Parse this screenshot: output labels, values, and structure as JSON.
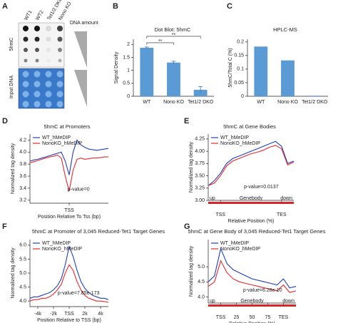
{
  "panel_a": {
    "label": "A",
    "columns": [
      "WT1",
      "WT2",
      "Tet1/2 DKO",
      "Nono KO"
    ],
    "rows": [
      "5hmC",
      "Input DNA"
    ],
    "gradient_label": "DNA amount"
  },
  "chart_data": [
    {
      "type": "bar",
      "panel": "B",
      "title": "Dot Blot: 5hmC",
      "y_label": "Signal Density",
      "categories": [
        "WT",
        "Nono KO",
        "Tet1/2 DKO"
      ],
      "values": [
        1.87,
        1.3,
        0.25
      ],
      "errors": [
        0.03,
        0.05,
        0.12
      ],
      "color": "#5b9bd5",
      "ylim": [
        0,
        2.2
      ],
      "yticks": [
        0,
        0.5,
        1,
        1.5,
        2
      ],
      "annotations": [
        "**",
        "**"
      ]
    },
    {
      "type": "bar",
      "panel": "C",
      "title": "HPLC-MS",
      "y_label": "5hmC/Total C (%)",
      "categories": [
        "WT",
        "Nono KO",
        "Tet1/2 DKO"
      ],
      "values": [
        0.183,
        0.132,
        0.002
      ],
      "color": "#5b9bd5",
      "ylim": [
        0,
        0.21
      ],
      "yticks": [
        0,
        0.05,
        0.1,
        0.15,
        0.2
      ]
    },
    {
      "type": "line",
      "panel": "D",
      "title": "5hmC at Promoters",
      "y_label": "Normalized tag density",
      "x_label": "Position Relative To Tss (bp)",
      "annotation": "p-value=0",
      "x": [
        -5000,
        -4500,
        -4000,
        -3500,
        -3000,
        -2500,
        -2000,
        -1500,
        -1000,
        -500,
        0,
        500,
        1000,
        1500,
        2000,
        2500,
        3000,
        3500,
        4000,
        4500,
        5000
      ],
      "series": [
        {
          "name": "WT_hMeDIP",
          "color": "#1f3fbf",
          "values": [
            3.85,
            3.87,
            3.88,
            3.9,
            3.92,
            3.94,
            3.96,
            3.98,
            4.0,
            3.85,
            3.62,
            4.0,
            4.2,
            4.12,
            4.08,
            4.05,
            4.04,
            4.03,
            4.04,
            4.05,
            4.06
          ]
        },
        {
          "name": "NonoKO_hMeDIP",
          "color": "#e8282c",
          "values": [
            3.82,
            3.84,
            3.86,
            3.88,
            3.9,
            3.92,
            3.93,
            3.95,
            3.9,
            3.6,
            3.35,
            3.7,
            3.88,
            3.9,
            3.88,
            3.89,
            3.9,
            3.9,
            3.91,
            3.92,
            3.92
          ]
        }
      ],
      "xlim": [
        -5000,
        5000
      ],
      "xticks": [
        {
          "value": 0,
          "label": "TSS"
        }
      ],
      "ylim": [
        3.15,
        4.3
      ],
      "yticks": [
        3.2,
        3.4,
        3.6,
        3.8,
        {
          "value": 4.0,
          "label": "4.0"
        },
        4.2
      ]
    },
    {
      "type": "line",
      "panel": "E",
      "title": "5hmC at Gene Bodies",
      "y_label": "Normalized tag density",
      "x_label": "Relative Position (%)",
      "annotation": "p-value=0.0137",
      "region_labels": [
        "up",
        "Genebody",
        "down"
      ],
      "x": [
        -20,
        -10,
        0,
        10,
        20,
        30,
        40,
        50,
        60,
        70,
        80,
        90,
        100,
        110,
        120
      ],
      "series": [
        {
          "name": "WT_hMeDIP",
          "color": "#1f3fbf",
          "values": [
            3.3,
            3.4,
            3.55,
            3.75,
            3.85,
            3.9,
            3.95,
            4.0,
            4.05,
            4.1,
            4.15,
            4.2,
            4.1,
            3.75,
            3.8
          ]
        },
        {
          "name": "NonoKO_hMeDIP",
          "color": "#e8282c",
          "values": [
            3.3,
            3.35,
            3.5,
            3.7,
            3.8,
            3.85,
            3.9,
            3.95,
            3.98,
            4.02,
            4.08,
            4.12,
            4.05,
            3.72,
            3.78
          ]
        }
      ],
      "xlim": [
        -20,
        120
      ],
      "xticks": [
        {
          "value": 0,
          "label": "TSS"
        },
        {
          "value": 100,
          "label": "TES"
        }
      ],
      "ylim": [
        3.0,
        4.35
      ],
      "yticks": [
        {
          "value": 3.0,
          "label": "3.00"
        },
        3.25,
        {
          "value": 3.5,
          "label": "3.50"
        },
        3.75,
        {
          "value": 4.0,
          "label": "4.00"
        },
        4.25
      ]
    },
    {
      "type": "line",
      "panel": "F",
      "title": "5hmC at Promoter of 3,045 Reduced-Tet1 Target Genes",
      "y_label": "Normalized tag density",
      "x_label": "Position Relative to TSS (bp)",
      "annotation": "p-value=7.85e-173",
      "x": [
        -5000,
        -4500,
        -4000,
        -3500,
        -3000,
        -2500,
        -2000,
        -1500,
        -1000,
        -500,
        0,
        500,
        1000,
        1500,
        2000,
        2500,
        3000,
        3500,
        4000,
        4500,
        5000
      ],
      "series": [
        {
          "name": "WT_hMeDIP",
          "color": "#1f3fbf",
          "values": [
            4.1,
            4.15,
            4.15,
            4.2,
            4.25,
            4.3,
            4.4,
            4.55,
            4.8,
            5.3,
            5.95,
            5.6,
            5.1,
            4.7,
            4.45,
            4.3,
            4.2,
            4.15,
            4.1,
            4.1,
            4.05
          ]
        },
        {
          "name": "NonoKO_hMeDIP",
          "color": "#e8282c",
          "values": [
            4.0,
            4.05,
            4.05,
            4.1,
            4.1,
            4.15,
            4.25,
            4.4,
            4.6,
            5.0,
            5.3,
            5.1,
            4.7,
            4.4,
            4.2,
            4.1,
            4.05,
            4.0,
            4.0,
            3.98,
            3.95
          ]
        }
      ],
      "xlim": [
        -5000,
        5000
      ],
      "xticks": [
        {
          "value": -4000,
          "label": "-4k"
        },
        {
          "value": -2000,
          "label": "-2k"
        },
        {
          "value": 0,
          "label": "TSS"
        },
        {
          "value": 2000,
          "label": "2k"
        },
        {
          "value": 4000,
          "label": "4k"
        }
      ],
      "ylim": [
        3.8,
        6.2
      ],
      "yticks": [
        {
          "value": 4.0,
          "label": "4.0"
        },
        4.5,
        {
          "value": 5.0,
          "label": "5.0"
        },
        5.5,
        {
          "value": 6.0,
          "label": "6.0"
        }
      ]
    },
    {
      "type": "line",
      "panel": "G",
      "title": "5hmC at Gene Body of 3,045 Reduced-Tet1 Target Genes",
      "y_label": "Normalized tag density",
      "x_label": "Relative Position (%)",
      "annotation": "p-value=6.28e-10",
      "region_labels": [
        "up",
        "Genebody",
        "down"
      ],
      "x": [
        -20,
        -10,
        0,
        10,
        20,
        30,
        40,
        50,
        60,
        70,
        80,
        90,
        100,
        110,
        120
      ],
      "series": [
        {
          "name": "WT_hMeDIP",
          "color": "#1f3fbf",
          "values": [
            4.5,
            4.7,
            5.6,
            5.1,
            4.9,
            4.8,
            4.7,
            4.6,
            4.55,
            4.5,
            4.45,
            4.4,
            4.6,
            4.3,
            4.35
          ]
        },
        {
          "name": "NonoKO_hMeDIP",
          "color": "#e8282c",
          "values": [
            4.35,
            4.5,
            5.2,
            4.8,
            4.6,
            4.5,
            4.45,
            4.4,
            4.35,
            4.3,
            4.25,
            4.2,
            4.4,
            4.15,
            4.2
          ]
        }
      ],
      "xlim": [
        -20,
        120
      ],
      "xticks": [
        {
          "value": 0,
          "label": "TSS"
        },
        25,
        50,
        75,
        {
          "value": 100,
          "label": "TES"
        }
      ],
      "ylim": [
        3.8,
        5.9
      ],
      "yticks": [
        {
          "value": 4.0,
          "label": "4.0"
        },
        4.5,
        {
          "value": 5.0,
          "label": "5.0"
        }
      ]
    }
  ]
}
